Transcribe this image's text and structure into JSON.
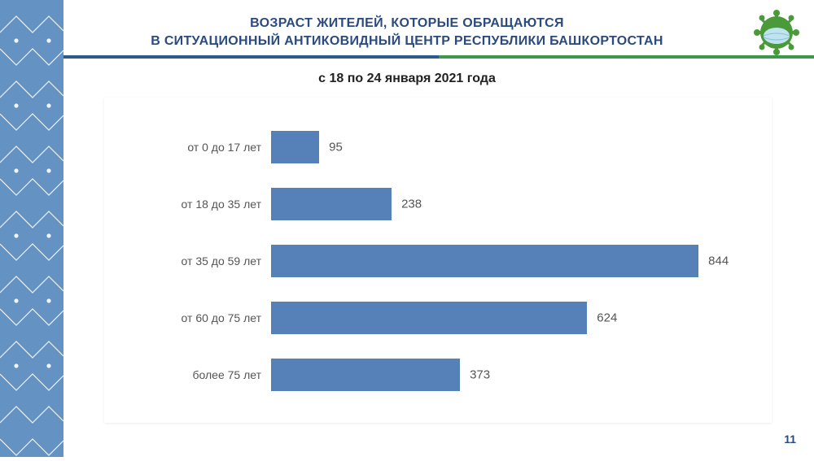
{
  "title": {
    "line1": "ВОЗРАСТ ЖИТЕЛЕЙ, КОТОРЫЕ ОБРАЩАЮТСЯ",
    "line2": "В СИТУАЦИОННЫЙ АНТИКОВИДНЫЙ ЦЕНТР РЕСПУБЛИКИ БАШКОРТОСТАН",
    "color": "#2b4a7f",
    "fontsize": 16
  },
  "subtitle": "с 18 по 24 января 2021 года",
  "chart": {
    "type": "bar-horizontal",
    "bar_color": "#5580b8",
    "label_color": "#555555",
    "value_color": "#555555",
    "label_fontsize": 14,
    "value_fontsize": 15,
    "max_value": 900,
    "bars": [
      {
        "label": "от 0 до 17 лет",
        "value": 95
      },
      {
        "label": "от 18 до 35 лет",
        "value": 238
      },
      {
        "label": "от 35 до 59 лет",
        "value": 844
      },
      {
        "label": "от 60 до 75 лет",
        "value": 624
      },
      {
        "label": "более 75 лет",
        "value": 373
      }
    ],
    "background_color": "#ffffff"
  },
  "decor": {
    "border_color": "#4a7fb8",
    "stripe_blue": "#2b5a8f",
    "stripe_green": "#3a9a4a"
  },
  "page_number": "11"
}
